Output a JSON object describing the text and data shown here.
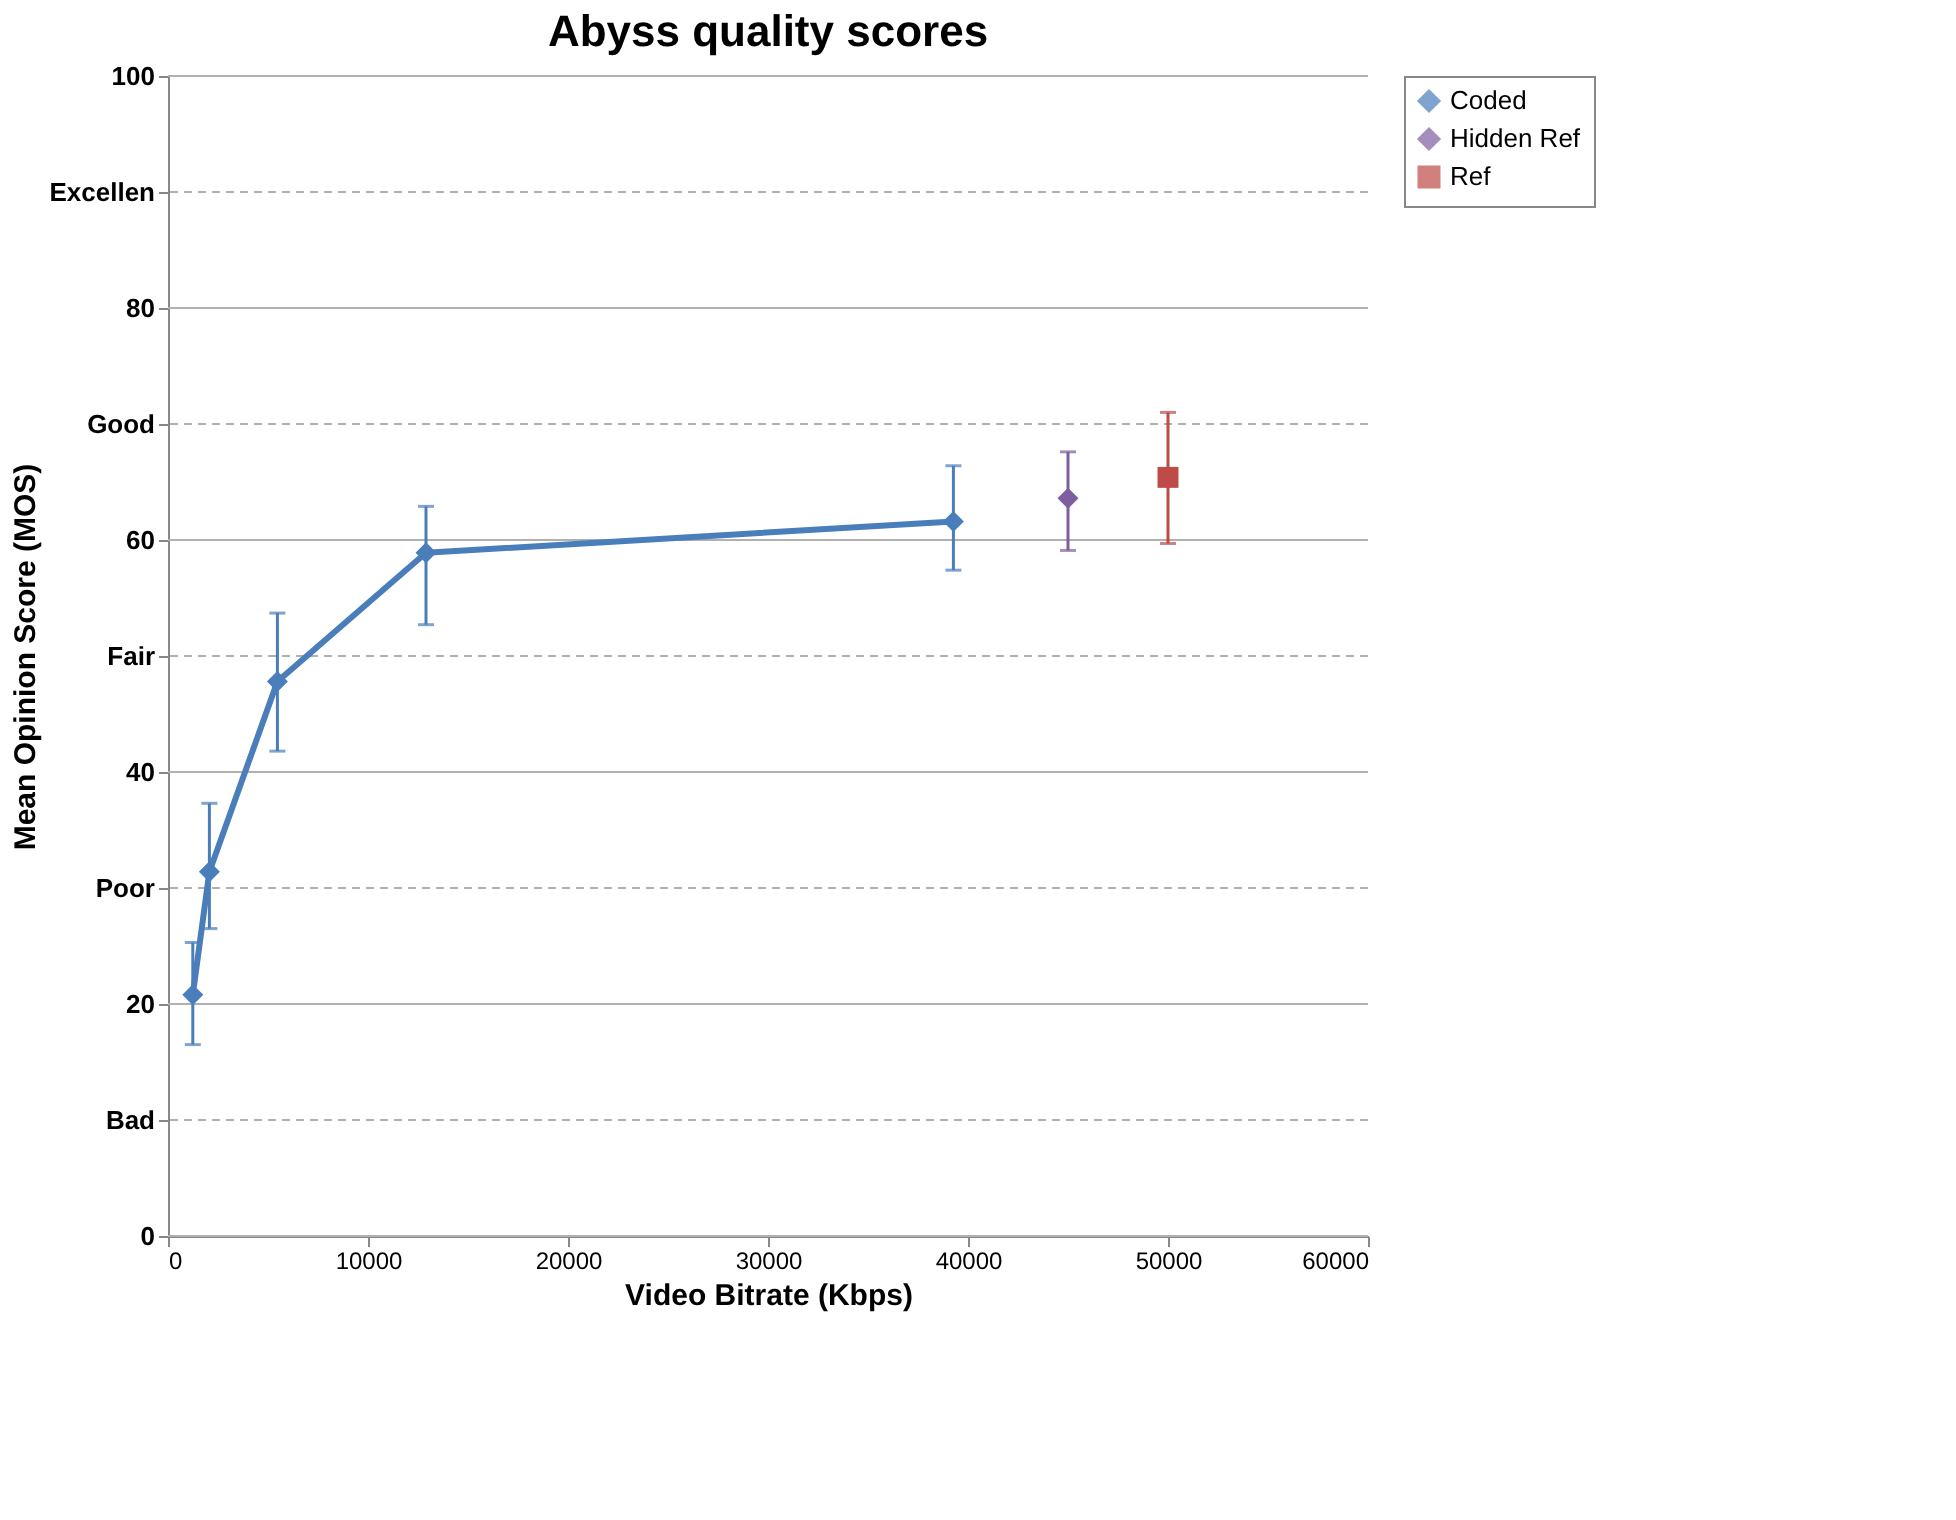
{
  "chart_data": {
    "type": "line",
    "title": "Abyss quality scores",
    "xlabel": "Video Bitrate (Kbps)",
    "ylabel": "Mean Opinion Score (MOS)",
    "series": [
      {
        "name": "Coded",
        "color": "#4a7ebb",
        "type": "line",
        "marker": "diamond",
        "x": [
          1240,
          2070,
          5470,
          12900,
          39270
        ],
        "values": [
          20.8,
          31.4,
          47.8,
          58.9,
          61.6
        ],
        "errors": [
          [
            16.5,
            25.3
          ],
          [
            26.5,
            37.3
          ],
          [
            41.8,
            53.7
          ],
          [
            52.7,
            62.9
          ],
          [
            57.4,
            66.4
          ]
        ]
      },
      {
        "name": "Hidden Ref",
        "color": "#7d5fa0",
        "type": "scatter",
        "marker": "diamond",
        "x": [
          45000
        ],
        "values": [
          63.6
        ],
        "errors": [
          [
            59.1,
            67.6
          ]
        ]
      },
      {
        "name": "Ref",
        "color": "#be4b48",
        "type": "scatter",
        "marker": "square",
        "x": [
          50000
        ],
        "values": [
          65.4
        ],
        "errors": [
          [
            59.7,
            71.0
          ]
        ]
      }
    ],
    "xlim": [
      0,
      60000
    ],
    "xticks": [
      0,
      10000,
      20000,
      30000,
      40000,
      50000,
      60000
    ],
    "ylim": [
      0,
      100
    ],
    "yticks": [
      0,
      {
        "value": 10,
        "label": "Bad"
      },
      20,
      {
        "value": 30,
        "label": "Poor"
      },
      40,
      {
        "value": 50,
        "label": "Fair"
      },
      60,
      {
        "value": 70,
        "label": "Good"
      },
      80,
      {
        "value": 90,
        "label": "Excellen"
      },
      100
    ],
    "grid": "y",
    "legend": "right"
  }
}
